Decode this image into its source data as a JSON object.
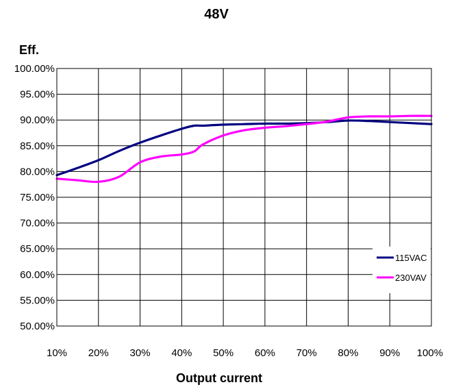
{
  "chart_data": {
    "type": "line",
    "title": "48V",
    "ylabel": "Eff.",
    "xlabel": "Output current",
    "x": [
      10,
      15,
      20,
      25,
      30,
      35,
      40,
      43,
      45,
      50,
      55,
      60,
      65,
      70,
      75,
      80,
      85,
      90,
      95,
      100
    ],
    "xticks": [
      "10%",
      "20%",
      "30%",
      "40%",
      "50%",
      "60%",
      "70%",
      "80%",
      "90%",
      "100%"
    ],
    "xlim": [
      10,
      100
    ],
    "yticks": [
      "50.00%",
      "55.00%",
      "60.00%",
      "65.00%",
      "70.00%",
      "75.00%",
      "80.00%",
      "85.00%",
      "90.00%",
      "95.00%",
      "100.00%"
    ],
    "ylim": [
      50,
      100
    ],
    "grid": true,
    "legend_position": "lower-right",
    "series": [
      {
        "name": "115VAC",
        "color": "#000080",
        "values": [
          79.3,
          80.7,
          82.2,
          84.0,
          85.6,
          87.0,
          88.3,
          88.9,
          88.9,
          89.1,
          89.2,
          89.3,
          89.3,
          89.4,
          89.6,
          89.9,
          89.8,
          89.6,
          89.4,
          89.2
        ]
      },
      {
        "name": "230VAV",
        "color": "#ff00ff",
        "values": [
          78.6,
          78.3,
          78.0,
          79.0,
          81.8,
          82.9,
          83.3,
          83.9,
          85.2,
          87.0,
          88.0,
          88.5,
          88.8,
          89.2,
          89.7,
          90.5,
          90.7,
          90.7,
          90.8,
          90.8
        ]
      }
    ]
  }
}
